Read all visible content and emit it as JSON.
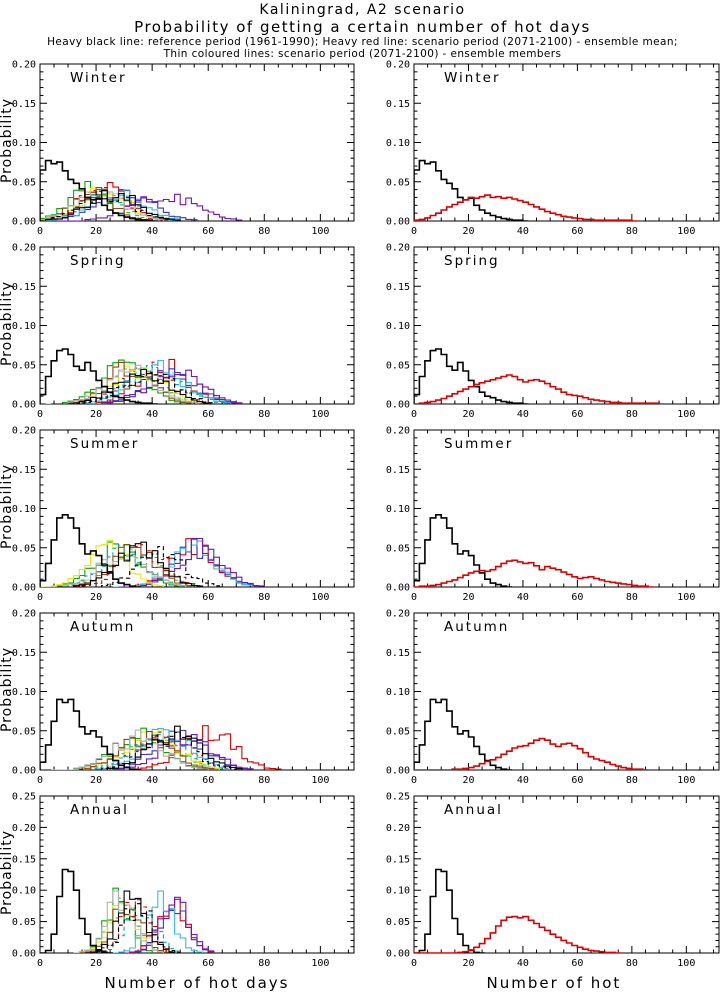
{
  "header": {
    "title": "Kaliningrad, A2 scenario",
    "subtitle": "Probability of getting a certain number of hot days",
    "legend_line1": "Heavy black line: reference period (1961-1990); Heavy red line: scenario period (2071-2100) - ensemble mean;",
    "legend_line2": "Thin coloured lines: scenario period (2071-2100) - ensemble members"
  },
  "colors": {
    "reference": "#000000",
    "ensemble_mean": "#dd0000",
    "axis": "#000000",
    "background": "#ffffff"
  },
  "chart_data": {
    "type": "line",
    "subtype": "step-histogram",
    "xlabel": "Number of hot days",
    "ylabel": "Probability",
    "xlim": [
      0,
      112
    ],
    "xticks": [
      0,
      20,
      40,
      60,
      80,
      100
    ],
    "x_minor": 5,
    "bin_width": 2,
    "legend_position": "top-text",
    "grid": false,
    "rows": [
      {
        "label": "Winter",
        "ylim": [
          0,
          0.2
        ],
        "yticks": [
          0.0,
          0.05,
          0.1,
          0.15,
          0.2
        ],
        "y_minor": 0.01,
        "reference": {
          "name": "reference 1961-1990",
          "x0": 0,
          "dx": 2,
          "y": [
            0.065,
            0.077,
            0.073,
            0.075,
            0.064,
            0.053,
            0.048,
            0.041,
            0.03,
            0.027,
            0.029,
            0.02,
            0.014,
            0.01,
            0.007,
            0.005,
            0.003,
            0.002,
            0.001,
            0.001,
            0
          ]
        },
        "mean": {
          "name": "ensemble mean 2071-2100",
          "x0": 0,
          "dx": 2,
          "y": [
            0.001,
            0.002,
            0.004,
            0.007,
            0.01,
            0.014,
            0.018,
            0.021,
            0.024,
            0.027,
            0.03,
            0.029,
            0.031,
            0.033,
            0.03,
            0.031,
            0.029,
            0.03,
            0.028,
            0.026,
            0.024,
            0.021,
            0.018,
            0.015,
            0.012,
            0.01,
            0.008,
            0.006,
            0.005,
            0.004,
            0.003,
            0.002,
            0.002,
            0.001,
            0.001,
            0.001,
            0.001,
            0.001,
            0.001,
            0.001,
            0
          ]
        },
        "members": [
          {
            "color": "#00aa00",
            "dash": false,
            "center": 17,
            "sigma": 7,
            "peak": 0.041
          },
          {
            "color": "#22cc22",
            "dash": true,
            "center": 20,
            "sigma": 8,
            "peak": 0.036
          },
          {
            "color": "#dd0000",
            "dash": true,
            "center": 22,
            "sigma": 8,
            "peak": 0.038
          },
          {
            "color": "#dd0000",
            "dash": false,
            "center": 24,
            "sigma": 8,
            "peak": 0.039
          },
          {
            "color": "#3333cc",
            "dash": false,
            "center": 30,
            "sigma": 10,
            "peak": 0.034
          },
          {
            "color": "#33bbee",
            "dash": false,
            "center": 28,
            "sigma": 9,
            "peak": 0.036
          },
          {
            "color": "#00aaaa",
            "dash": true,
            "center": 25,
            "sigma": 9,
            "peak": 0.034
          },
          {
            "color": "#7711bb",
            "dash": false,
            "center": 44,
            "sigma": 11,
            "peak": 0.032
          },
          {
            "color": "#e8e800",
            "dash": false,
            "center": 23,
            "sigma": 8,
            "peak": 0.041
          },
          {
            "color": "#994411",
            "dash": false,
            "center": 19,
            "sigma": 7,
            "peak": 0.04
          },
          {
            "color": "#b0b0b0",
            "dash": false,
            "center": 22,
            "sigma": 9,
            "peak": 0.034
          },
          {
            "color": "#000000",
            "dash": false,
            "center": 26,
            "sigma": 9,
            "peak": 0.035
          },
          {
            "color": "#000000",
            "dash": true,
            "center": 24,
            "sigma": 9,
            "peak": 0.033
          }
        ]
      },
      {
        "label": "Spring",
        "ylim": [
          0,
          0.2
        ],
        "yticks": [
          0.0,
          0.05,
          0.1,
          0.15,
          0.2
        ],
        "y_minor": 0.01,
        "reference": {
          "name": "reference 1961-1990",
          "x0": 0,
          "dx": 2,
          "y": [
            0.012,
            0.035,
            0.055,
            0.068,
            0.07,
            0.063,
            0.048,
            0.043,
            0.053,
            0.042,
            0.03,
            0.022,
            0.015,
            0.01,
            0.008,
            0.005,
            0.003,
            0.002,
            0.001,
            0.001,
            0
          ]
        },
        "mean": {
          "name": "ensemble mean 2071-2100",
          "x0": 0,
          "dx": 2,
          "y": [
            0,
            0.001,
            0.002,
            0.003,
            0.005,
            0.007,
            0.01,
            0.013,
            0.016,
            0.019,
            0.022,
            0.025,
            0.027,
            0.029,
            0.031,
            0.033,
            0.035,
            0.037,
            0.035,
            0.031,
            0.028,
            0.03,
            0.031,
            0.029,
            0.026,
            0.022,
            0.019,
            0.015,
            0.012,
            0.011,
            0.01,
            0.008,
            0.006,
            0.005,
            0.004,
            0.003,
            0.002,
            0.002,
            0.001,
            0.001,
            0.001,
            0.001,
            0.001,
            0.001,
            0.001,
            0
          ]
        },
        "members": [
          {
            "color": "#00aa00",
            "dash": false,
            "center": 30,
            "sigma": 8,
            "peak": 0.048
          },
          {
            "color": "#22cc22",
            "dash": true,
            "center": 33,
            "sigma": 9,
            "peak": 0.042
          },
          {
            "color": "#dd0000",
            "dash": true,
            "center": 38,
            "sigma": 9,
            "peak": 0.044
          },
          {
            "color": "#dd0000",
            "dash": false,
            "center": 44,
            "sigma": 9,
            "peak": 0.047
          },
          {
            "color": "#3333cc",
            "dash": false,
            "center": 46,
            "sigma": 9,
            "peak": 0.043
          },
          {
            "color": "#33bbee",
            "dash": false,
            "center": 42,
            "sigma": 10,
            "peak": 0.044
          },
          {
            "color": "#00aaaa",
            "dash": true,
            "center": 40,
            "sigma": 10,
            "peak": 0.042
          },
          {
            "color": "#7711bb",
            "dash": false,
            "center": 48,
            "sigma": 9,
            "peak": 0.042
          },
          {
            "color": "#e8e800",
            "dash": false,
            "center": 35,
            "sigma": 9,
            "peak": 0.045
          },
          {
            "color": "#994411",
            "dash": false,
            "center": 32,
            "sigma": 8,
            "peak": 0.045
          },
          {
            "color": "#b0b0b0",
            "dash": false,
            "center": 33,
            "sigma": 9,
            "peak": 0.042
          },
          {
            "color": "#000000",
            "dash": false,
            "center": 36,
            "sigma": 9,
            "peak": 0.04
          },
          {
            "color": "#000000",
            "dash": true,
            "center": 39,
            "sigma": 9,
            "peak": 0.04
          }
        ]
      },
      {
        "label": "Summer",
        "ylim": [
          0,
          0.2
        ],
        "yticks": [
          0.0,
          0.05,
          0.1,
          0.15,
          0.2
        ],
        "y_minor": 0.01,
        "reference": {
          "name": "reference 1961-1990",
          "x0": 0,
          "dx": 2,
          "y": [
            0.008,
            0.03,
            0.06,
            0.088,
            0.092,
            0.088,
            0.075,
            0.055,
            0.042,
            0.046,
            0.04,
            0.028,
            0.018,
            0.01,
            0.005,
            0.003,
            0.001,
            0
          ]
        },
        "mean": {
          "name": "ensemble mean 2071-2100",
          "x0": 0,
          "dx": 2,
          "y": [
            0,
            0.001,
            0.001,
            0.002,
            0.003,
            0.005,
            0.007,
            0.009,
            0.012,
            0.015,
            0.018,
            0.02,
            0.021,
            0.02,
            0.022,
            0.026,
            0.03,
            0.033,
            0.034,
            0.032,
            0.03,
            0.031,
            0.027,
            0.022,
            0.026,
            0.024,
            0.022,
            0.019,
            0.016,
            0.013,
            0.011,
            0.012,
            0.013,
            0.011,
            0.009,
            0.007,
            0.006,
            0.005,
            0.004,
            0.003,
            0.002,
            0.001,
            0.001,
            0
          ]
        },
        "members": [
          {
            "color": "#00aa00",
            "dash": false,
            "center": 28,
            "sigma": 8,
            "peak": 0.05
          },
          {
            "color": "#22cc22",
            "dash": true,
            "center": 34,
            "sigma": 9,
            "peak": 0.046
          },
          {
            "color": "#dd0000",
            "dash": true,
            "center": 37,
            "sigma": 8,
            "peak": 0.047
          },
          {
            "color": "#dd0000",
            "dash": false,
            "center": 55,
            "sigma": 8,
            "peak": 0.05
          },
          {
            "color": "#3333cc",
            "dash": false,
            "center": 56,
            "sigma": 8,
            "peak": 0.05
          },
          {
            "color": "#33bbee",
            "dash": false,
            "center": 55,
            "sigma": 8,
            "peak": 0.05
          },
          {
            "color": "#00aaaa",
            "dash": true,
            "center": 30,
            "sigma": 8,
            "peak": 0.046
          },
          {
            "color": "#7711bb",
            "dash": false,
            "center": 57,
            "sigma": 8,
            "peak": 0.05
          },
          {
            "color": "#e8e800",
            "dash": false,
            "center": 24,
            "sigma": 7,
            "peak": 0.055
          },
          {
            "color": "#994411",
            "dash": false,
            "center": 33,
            "sigma": 8,
            "peak": 0.048
          },
          {
            "color": "#b0b0b0",
            "dash": false,
            "center": 30,
            "sigma": 8,
            "peak": 0.046
          },
          {
            "color": "#000000",
            "dash": false,
            "center": 35,
            "sigma": 8,
            "peak": 0.05
          },
          {
            "color": "#000000",
            "dash": true,
            "center": 43,
            "sigma": 8,
            "peak": 0.045
          }
        ]
      },
      {
        "label": "Autumn",
        "ylim": [
          0,
          0.2
        ],
        "yticks": [
          0.0,
          0.05,
          0.1,
          0.15,
          0.2
        ],
        "y_minor": 0.01,
        "reference": {
          "name": "reference 1961-1990",
          "x0": 0,
          "dx": 2,
          "y": [
            0.01,
            0.032,
            0.062,
            0.09,
            0.086,
            0.09,
            0.075,
            0.055,
            0.046,
            0.05,
            0.042,
            0.03,
            0.02,
            0.012,
            0.006,
            0.003,
            0.001,
            0
          ]
        },
        "mean": {
          "name": "ensemble mean 2071-2100",
          "x0": 0,
          "dx": 2,
          "y": [
            0,
            0,
            0,
            0,
            0,
            0,
            0,
            0.001,
            0.001,
            0.002,
            0.003,
            0.005,
            0.008,
            0.011,
            0.013,
            0.016,
            0.02,
            0.024,
            0.028,
            0.03,
            0.031,
            0.034,
            0.038,
            0.04,
            0.038,
            0.033,
            0.03,
            0.033,
            0.034,
            0.031,
            0.027,
            0.022,
            0.017,
            0.014,
            0.012,
            0.01,
            0.007,
            0.005,
            0.003,
            0.002,
            0.001,
            0.001,
            0
          ]
        },
        "members": [
          {
            "color": "#00aa00",
            "dash": false,
            "center": 36,
            "sigma": 9,
            "peak": 0.044
          },
          {
            "color": "#22cc22",
            "dash": true,
            "center": 40,
            "sigma": 9,
            "peak": 0.042
          },
          {
            "color": "#dd0000",
            "dash": true,
            "center": 44,
            "sigma": 9,
            "peak": 0.044
          },
          {
            "color": "#dd0000",
            "dash": false,
            "center": 60,
            "sigma": 9,
            "peak": 0.05
          },
          {
            "color": "#3333cc",
            "dash": false,
            "center": 50,
            "sigma": 9,
            "peak": 0.044
          },
          {
            "color": "#33bbee",
            "dash": false,
            "center": 45,
            "sigma": 9,
            "peak": 0.046
          },
          {
            "color": "#00aaaa",
            "dash": true,
            "center": 42,
            "sigma": 9,
            "peak": 0.042
          },
          {
            "color": "#7711bb",
            "dash": false,
            "center": 52,
            "sigma": 9,
            "peak": 0.044
          },
          {
            "color": "#e8e800",
            "dash": false,
            "center": 40,
            "sigma": 9,
            "peak": 0.046
          },
          {
            "color": "#994411",
            "dash": false,
            "center": 38,
            "sigma": 9,
            "peak": 0.044
          },
          {
            "color": "#b0b0b0",
            "dash": false,
            "center": 35,
            "sigma": 9,
            "peak": 0.04
          },
          {
            "color": "#000000",
            "dash": false,
            "center": 48,
            "sigma": 9,
            "peak": 0.046
          },
          {
            "color": "#000000",
            "dash": true,
            "center": 46,
            "sigma": 9,
            "peak": 0.042
          }
        ]
      },
      {
        "label": "Annual",
        "ylim": [
          0,
          0.25
        ],
        "yticks": [
          0.0,
          0.05,
          0.1,
          0.15,
          0.2,
          0.25
        ],
        "y_minor": 0.01,
        "reference": {
          "name": "reference 1961-1990",
          "x0": 0,
          "dx": 2,
          "y": [
            0,
            0.004,
            0.03,
            0.09,
            0.133,
            0.13,
            0.1,
            0.055,
            0.03,
            0.012,
            0.004,
            0.001,
            0
          ]
        },
        "mean": {
          "name": "ensemble mean 2071-2100",
          "x0": 0,
          "dx": 2,
          "y": [
            0,
            0,
            0,
            0,
            0,
            0,
            0,
            0,
            0.001,
            0.002,
            0.005,
            0.009,
            0.015,
            0.023,
            0.032,
            0.043,
            0.052,
            0.057,
            0.058,
            0.056,
            0.058,
            0.052,
            0.047,
            0.041,
            0.036,
            0.03,
            0.025,
            0.02,
            0.016,
            0.012,
            0.009,
            0.006,
            0.004,
            0.003,
            0.002,
            0.001,
            0.001,
            0
          ]
        },
        "members": [
          {
            "color": "#00aa00",
            "dash": false,
            "center": 28,
            "sigma": 4.5,
            "peak": 0.088
          },
          {
            "color": "#22cc22",
            "dash": true,
            "center": 30,
            "sigma": 5,
            "peak": 0.078
          },
          {
            "color": "#dd0000",
            "dash": true,
            "center": 34,
            "sigma": 5,
            "peak": 0.078
          },
          {
            "color": "#dd0000",
            "dash": false,
            "center": 47,
            "sigma": 5,
            "peak": 0.078
          },
          {
            "color": "#3333cc",
            "dash": false,
            "center": 48,
            "sigma": 5,
            "peak": 0.072
          },
          {
            "color": "#33bbee",
            "dash": false,
            "center": 43,
            "sigma": 5,
            "peak": 0.08
          },
          {
            "color": "#00aaaa",
            "dash": true,
            "center": 36,
            "sigma": 5,
            "peak": 0.074
          },
          {
            "color": "#7711bb",
            "dash": false,
            "center": 48,
            "sigma": 5,
            "peak": 0.078
          },
          {
            "color": "#e8e800",
            "dash": false,
            "center": 30,
            "sigma": 5,
            "peak": 0.08
          },
          {
            "color": "#994411",
            "dash": false,
            "center": 31,
            "sigma": 5,
            "peak": 0.082
          },
          {
            "color": "#b0b0b0",
            "dash": false,
            "center": 29,
            "sigma": 5,
            "peak": 0.088
          },
          {
            "color": "#000000",
            "dash": false,
            "center": 33,
            "sigma": 5,
            "peak": 0.085
          },
          {
            "color": "#000000",
            "dash": true,
            "center": 35,
            "sigma": 5,
            "peak": 0.078
          }
        ]
      }
    ]
  }
}
